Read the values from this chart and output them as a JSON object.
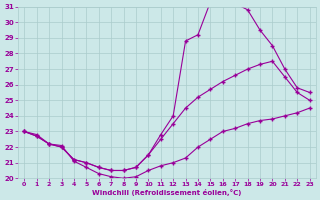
{
  "xlabel": "Windchill (Refroidissement éolien,°C)",
  "xlim": [
    -0.5,
    23.5
  ],
  "ylim": [
    20,
    31
  ],
  "xticks": [
    0,
    1,
    2,
    3,
    4,
    5,
    6,
    7,
    8,
    9,
    10,
    11,
    12,
    13,
    14,
    15,
    16,
    17,
    18,
    19,
    20,
    21,
    22,
    23
  ],
  "yticks": [
    20,
    21,
    22,
    23,
    24,
    25,
    26,
    27,
    28,
    29,
    30,
    31
  ],
  "bg_color": "#cce8e8",
  "grid_color": "#aacccc",
  "line_color": "#990099",
  "curves": [
    {
      "x": [
        0,
        1,
        2,
        3,
        4,
        5,
        6,
        7,
        8,
        9,
        10,
        11,
        12,
        13,
        14,
        15,
        16,
        17,
        18,
        19,
        20,
        21,
        22,
        23
      ],
      "y": [
        23.0,
        22.7,
        22.2,
        22.1,
        21.1,
        20.7,
        20.3,
        20.1,
        20.0,
        20.1,
        20.5,
        20.8,
        21.0,
        21.3,
        22.0,
        22.5,
        23.0,
        23.2,
        23.5,
        23.7,
        23.8,
        24.0,
        24.2,
        24.5
      ]
    },
    {
      "x": [
        0,
        1,
        2,
        3,
        4,
        5,
        6,
        7,
        8,
        9,
        10,
        11,
        12,
        13,
        14,
        15,
        16,
        17,
        18,
        19,
        20,
        21,
        22,
        23
      ],
      "y": [
        23.0,
        22.7,
        22.2,
        22.0,
        21.2,
        21.0,
        20.7,
        20.5,
        20.5,
        20.7,
        21.5,
        22.5,
        23.5,
        24.5,
        25.2,
        25.7,
        26.2,
        26.6,
        27.0,
        27.3,
        27.5,
        26.5,
        25.5,
        25.0
      ]
    },
    {
      "x": [
        0,
        1,
        2,
        3,
        4,
        5,
        6,
        7,
        8,
        9,
        10,
        11,
        12,
        13,
        14,
        15,
        16,
        17,
        18,
        19,
        20,
        21,
        22,
        23
      ],
      "y": [
        23.0,
        22.8,
        22.2,
        22.0,
        21.2,
        21.0,
        20.7,
        20.5,
        20.5,
        20.7,
        21.5,
        22.8,
        24.0,
        28.8,
        29.2,
        31.3,
        31.5,
        31.2,
        30.8,
        29.5,
        28.5,
        27.0,
        25.8,
        25.5
      ]
    }
  ]
}
